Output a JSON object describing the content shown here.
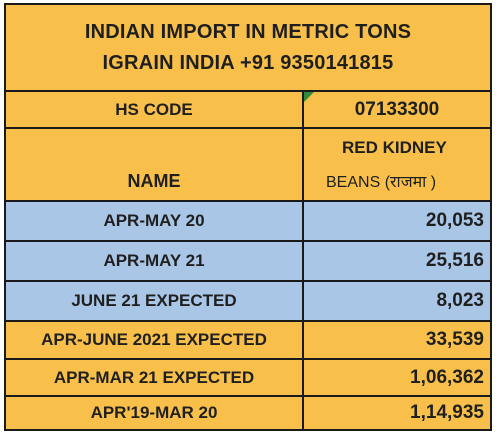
{
  "title": {
    "line1": "INDIAN IMPORT IN METRIC TONS",
    "line2": "IGRAIN INDIA +91 9350141815"
  },
  "hs_code": {
    "label": "HS CODE",
    "value": "07133300"
  },
  "name": {
    "label": "NAME",
    "value_line1": "RED KIDNEY",
    "value_line2": "BEANS (राजमा )"
  },
  "rows": [
    {
      "label": "APR-MAY 20",
      "value": "20,053"
    },
    {
      "label": "APR-MAY 21",
      "value": "25,516"
    },
    {
      "label": "JUNE 21 EXPECTED",
      "value": "8,023"
    },
    {
      "label": "APR-JUNE 2021 EXPECTED",
      "value": "33,539"
    },
    {
      "label": "APR-MAR 21 EXPECTED",
      "value": "1,06,362"
    },
    {
      "label": "APR'19-MAR 20",
      "value": "1,14,935"
    }
  ],
  "colors": {
    "gold": "#f8c04a",
    "blue": "#a9c6e6",
    "marker": "#2f8a3a"
  }
}
